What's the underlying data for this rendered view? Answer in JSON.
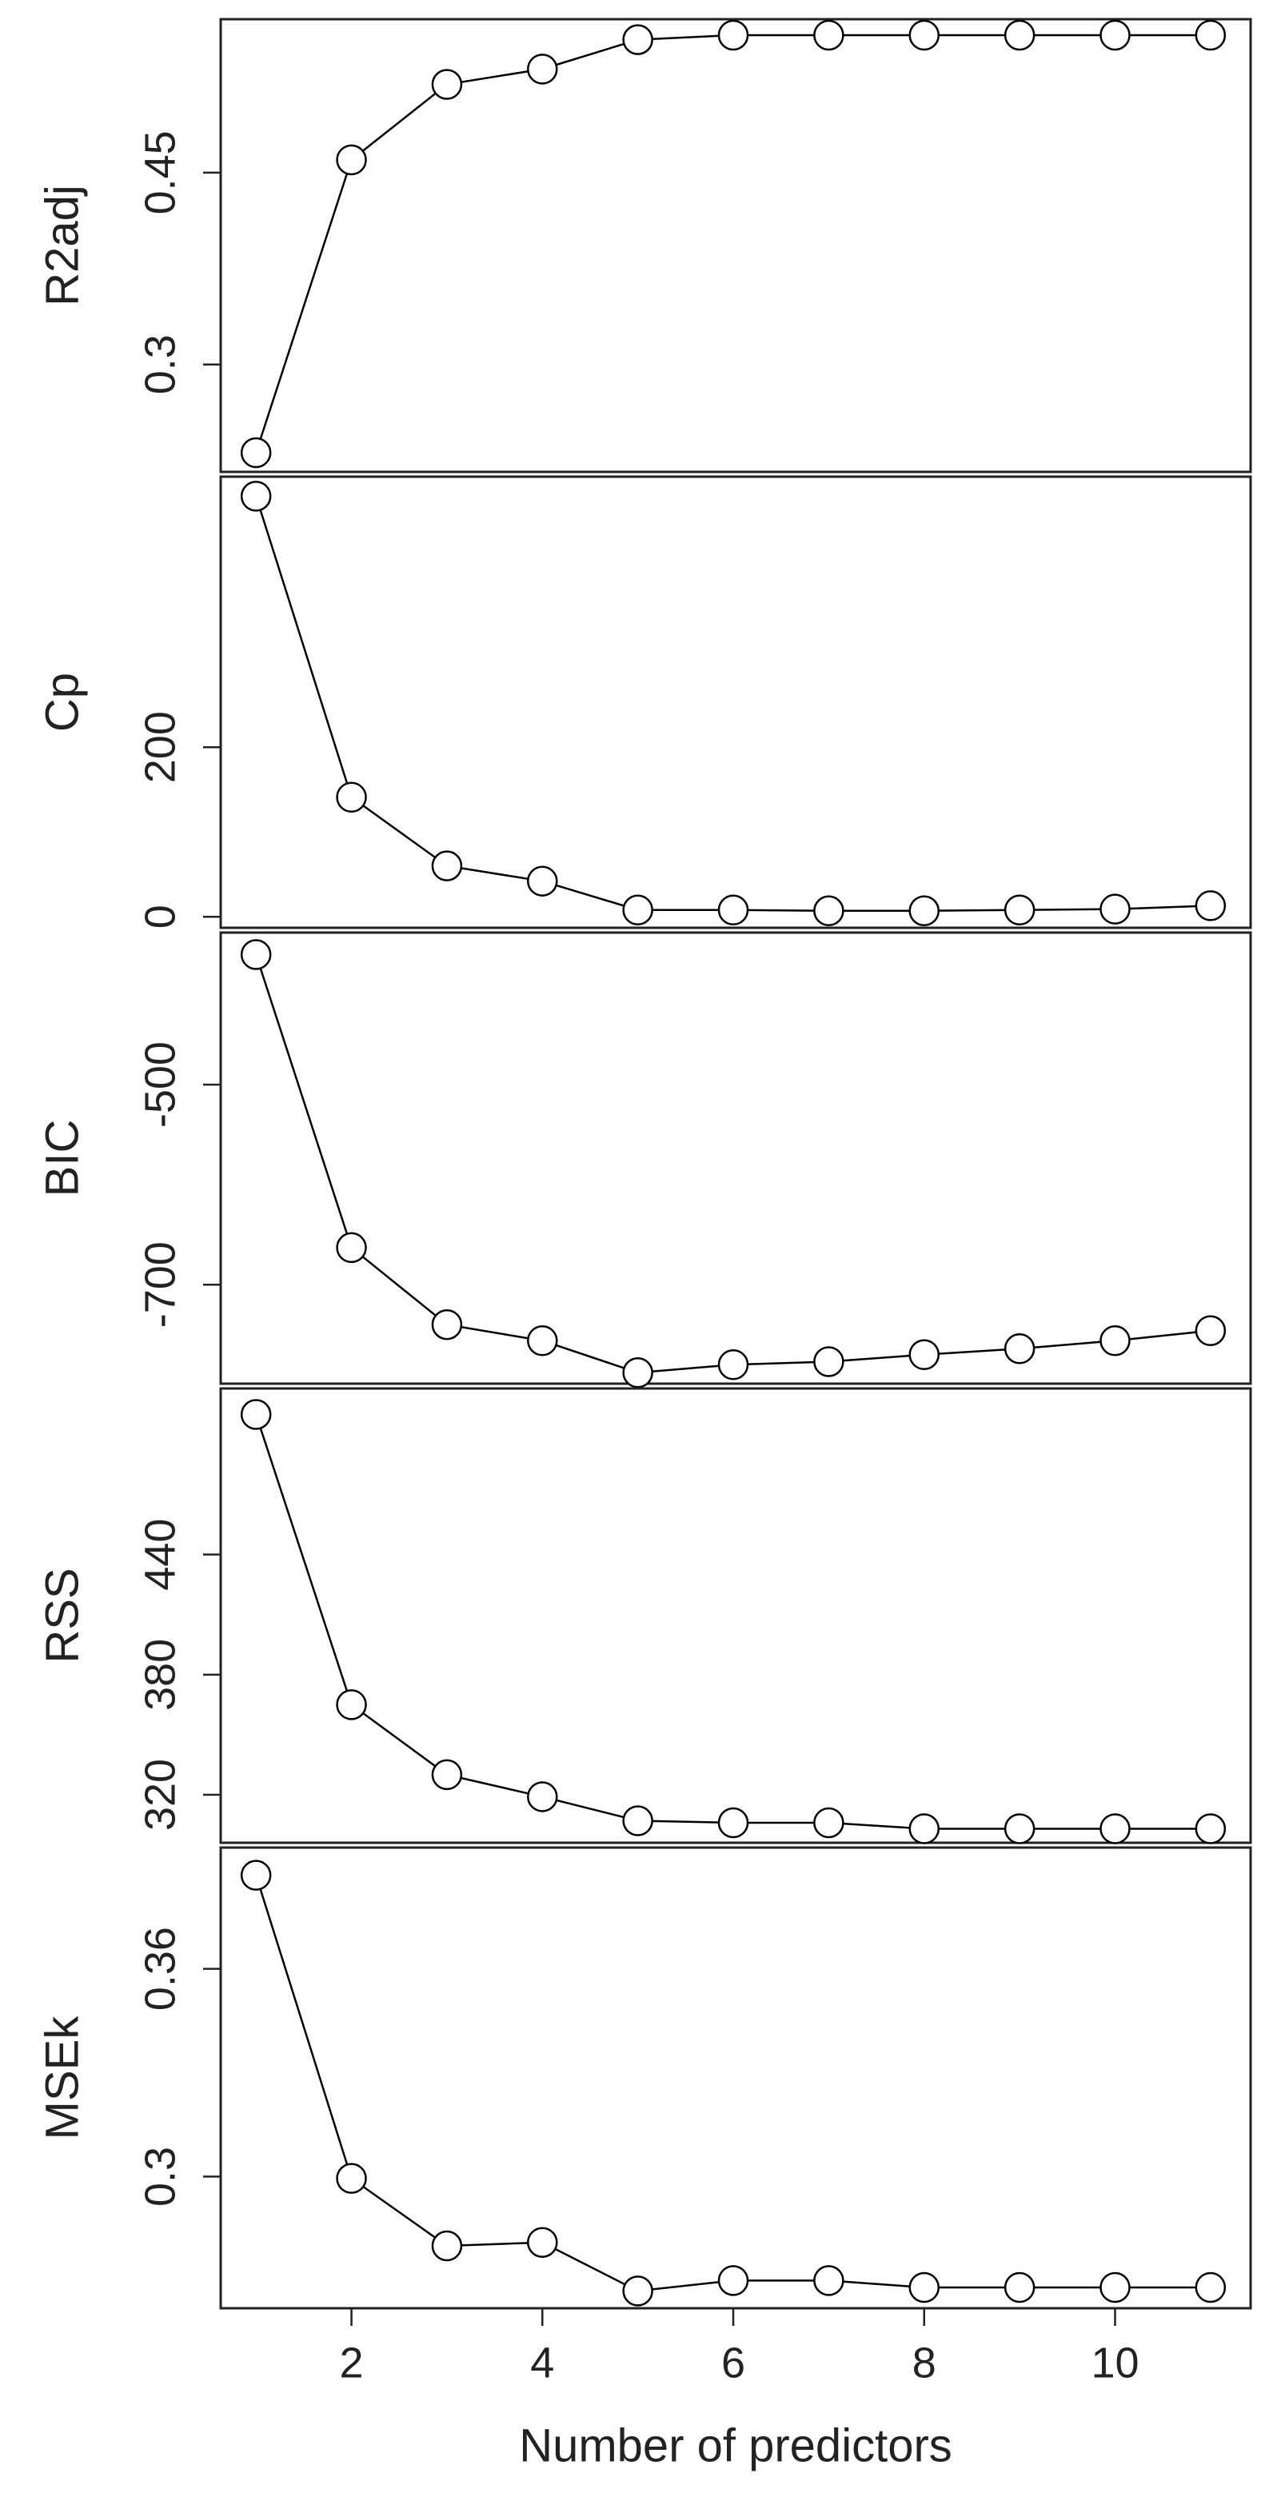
{
  "chart_data": [
    {
      "type": "line",
      "ylabel": "R2adj",
      "x": [
        1,
        2,
        3,
        4,
        5,
        6,
        7,
        8,
        9,
        10,
        11
      ],
      "values": [
        0.231,
        0.46,
        0.519,
        0.531,
        0.554,
        0.5575,
        0.5575,
        0.5575,
        0.5575,
        0.5575,
        0.5575
      ],
      "xlim": [
        0.63,
        11.42
      ],
      "ylim": [
        0.216,
        0.57
      ],
      "yticks": [
        0.3,
        0.45
      ],
      "color": "#000000"
    },
    {
      "type": "line",
      "ylabel": "Cp",
      "x": [
        1,
        2,
        3,
        4,
        5,
        6,
        7,
        8,
        9,
        10,
        11
      ],
      "values": [
        496,
        141,
        60,
        42,
        8,
        8,
        7,
        7,
        8,
        9,
        13
      ],
      "xlim": [
        0.63,
        11.42
      ],
      "ylim": [
        -13,
        519
      ],
      "yticks": [
        0,
        200
      ],
      "color": "#000000"
    },
    {
      "type": "line",
      "ylabel": "BIC",
      "x": [
        1,
        2,
        3,
        4,
        5,
        6,
        7,
        8,
        9,
        10,
        11
      ],
      "values": [
        -370,
        -663,
        -740,
        -756,
        -788,
        -780,
        -777,
        -770,
        -764,
        -756,
        -746
      ],
      "xlim": [
        0.63,
        11.42
      ],
      "ylim": [
        -799,
        -348
      ],
      "yticks": [
        -700,
        -500
      ],
      "color": "#000000"
    },
    {
      "type": "line",
      "ylabel": "RSS",
      "x": [
        1,
        2,
        3,
        4,
        5,
        6,
        7,
        8,
        9,
        10,
        11
      ],
      "values": [
        510,
        365,
        330,
        319,
        307,
        306,
        306,
        303,
        303,
        303,
        303
      ],
      "xlim": [
        0.63,
        11.42
      ],
      "ylim": [
        296,
        523
      ],
      "yticks": [
        320,
        380,
        440
      ],
      "color": "#000000"
    },
    {
      "type": "line",
      "ylabel": "MSEk",
      "x": [
        1,
        2,
        3,
        4,
        5,
        6,
        7,
        8,
        9,
        10,
        11
      ],
      "values": [
        0.387,
        0.2995,
        0.28,
        0.281,
        0.267,
        0.27,
        0.27,
        0.268,
        0.268,
        0.268,
        0.268
      ],
      "xlim": [
        0.63,
        11.42
      ],
      "ylim": [
        0.262,
        0.395
      ],
      "yticks": [
        0.3,
        0.36
      ],
      "color": "#000000",
      "xticks": [
        2,
        4,
        6,
        8,
        10
      ],
      "xlabel": "Number of predictors"
    }
  ]
}
